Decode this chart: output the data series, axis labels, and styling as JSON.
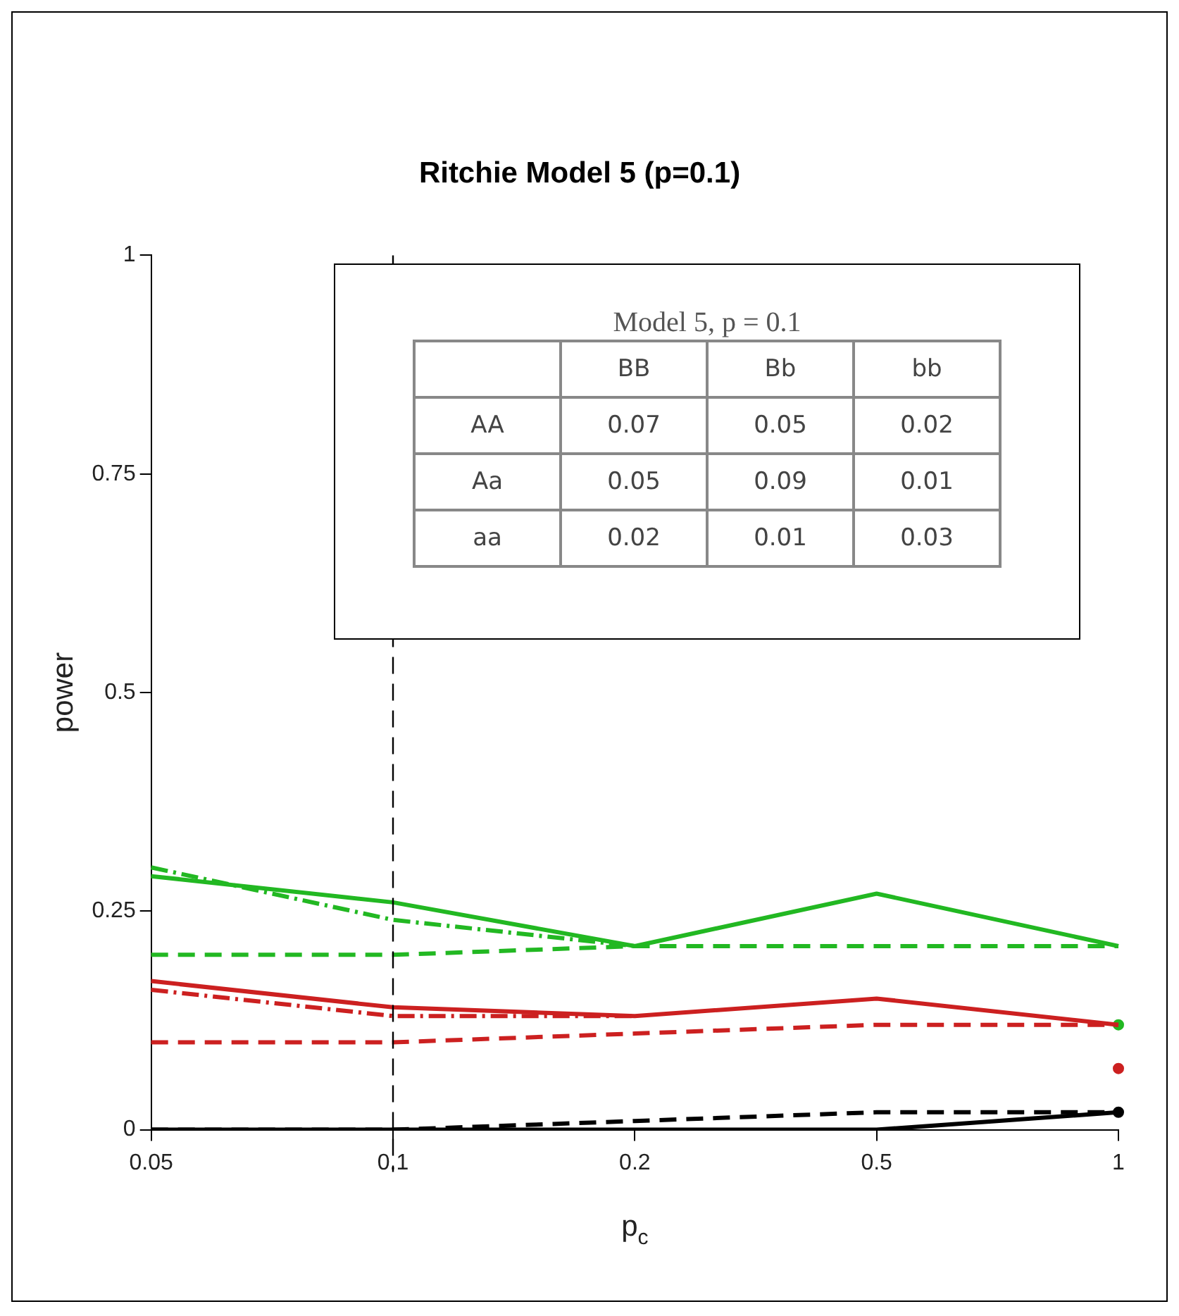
{
  "chart_data": [
    {
      "type": "line",
      "title": "Ritchie Model 5 (p=0.1)",
      "xlabel": "p$_{c}$",
      "ylabel": "power",
      "categories": [
        "0.05",
        "0.1",
        "0.2",
        "0.5",
        "1"
      ],
      "ylim": [
        0,
        1
      ],
      "yticks": [
        0,
        0.25,
        0.5,
        0.75,
        1
      ],
      "grid": false,
      "legend": false,
      "marker": "none",
      "ref_lines": [
        {
          "axis": "x",
          "value": "0.1",
          "color": "#000000",
          "line_style": "dashed"
        }
      ],
      "series": [
        {
          "color": "#22b822",
          "line_style": "solid",
          "values": [
            0.29,
            0.26,
            0.21,
            0.27,
            0.21
          ]
        },
        {
          "color": "#22b822",
          "line_style": "dashed",
          "values": [
            0.2,
            0.2,
            0.21,
            0.21,
            0.21
          ]
        },
        {
          "color": "#22b822",
          "line_style": "dotted",
          "values": [
            0.3,
            0.24,
            0.21,
            null,
            null
          ]
        },
        {
          "color": "#cc2020",
          "line_style": "solid",
          "values": [
            0.17,
            0.14,
            0.13,
            0.15,
            0.12
          ]
        },
        {
          "color": "#cc2020",
          "line_style": "dashed",
          "values": [
            0.1,
            0.1,
            0.11,
            0.12,
            0.12
          ]
        },
        {
          "color": "#cc2020",
          "line_style": "dotted",
          "values": [
            0.16,
            0.13,
            0.13,
            null,
            null
          ]
        },
        {
          "color": "#000000",
          "line_style": "solid",
          "values": [
            0,
            0,
            0,
            0,
            0.02
          ]
        },
        {
          "color": "#000000",
          "line_style": "dashed",
          "values": [
            0,
            0,
            0.01,
            0.02,
            0.02
          ]
        },
        {
          "type": "scatter",
          "marker": "circle",
          "color": "#22b822",
          "x": [
            "1"
          ],
          "values": [
            0.12
          ]
        },
        {
          "type": "scatter",
          "marker": "circle",
          "color": "#cc2020",
          "x": [
            "1"
          ],
          "values": [
            0.07
          ]
        },
        {
          "type": "scatter",
          "marker": "circle",
          "color": "#000000",
          "x": [
            "1"
          ],
          "values": [
            0.02
          ]
        }
      ]
    },
    {
      "type": "heatmap",
      "title": "Model  5, p = 0.1",
      "categories": [
        "BB",
        "Bb",
        "bb"
      ],
      "y_categories": [
        "AA",
        "Aa",
        "aa"
      ],
      "data_labels": true,
      "cells": [
        [
          0.07,
          0.05,
          0.02
        ],
        [
          0.05,
          0.09,
          0.01
        ],
        [
          0.02,
          0.01,
          0.03
        ]
      ]
    }
  ]
}
